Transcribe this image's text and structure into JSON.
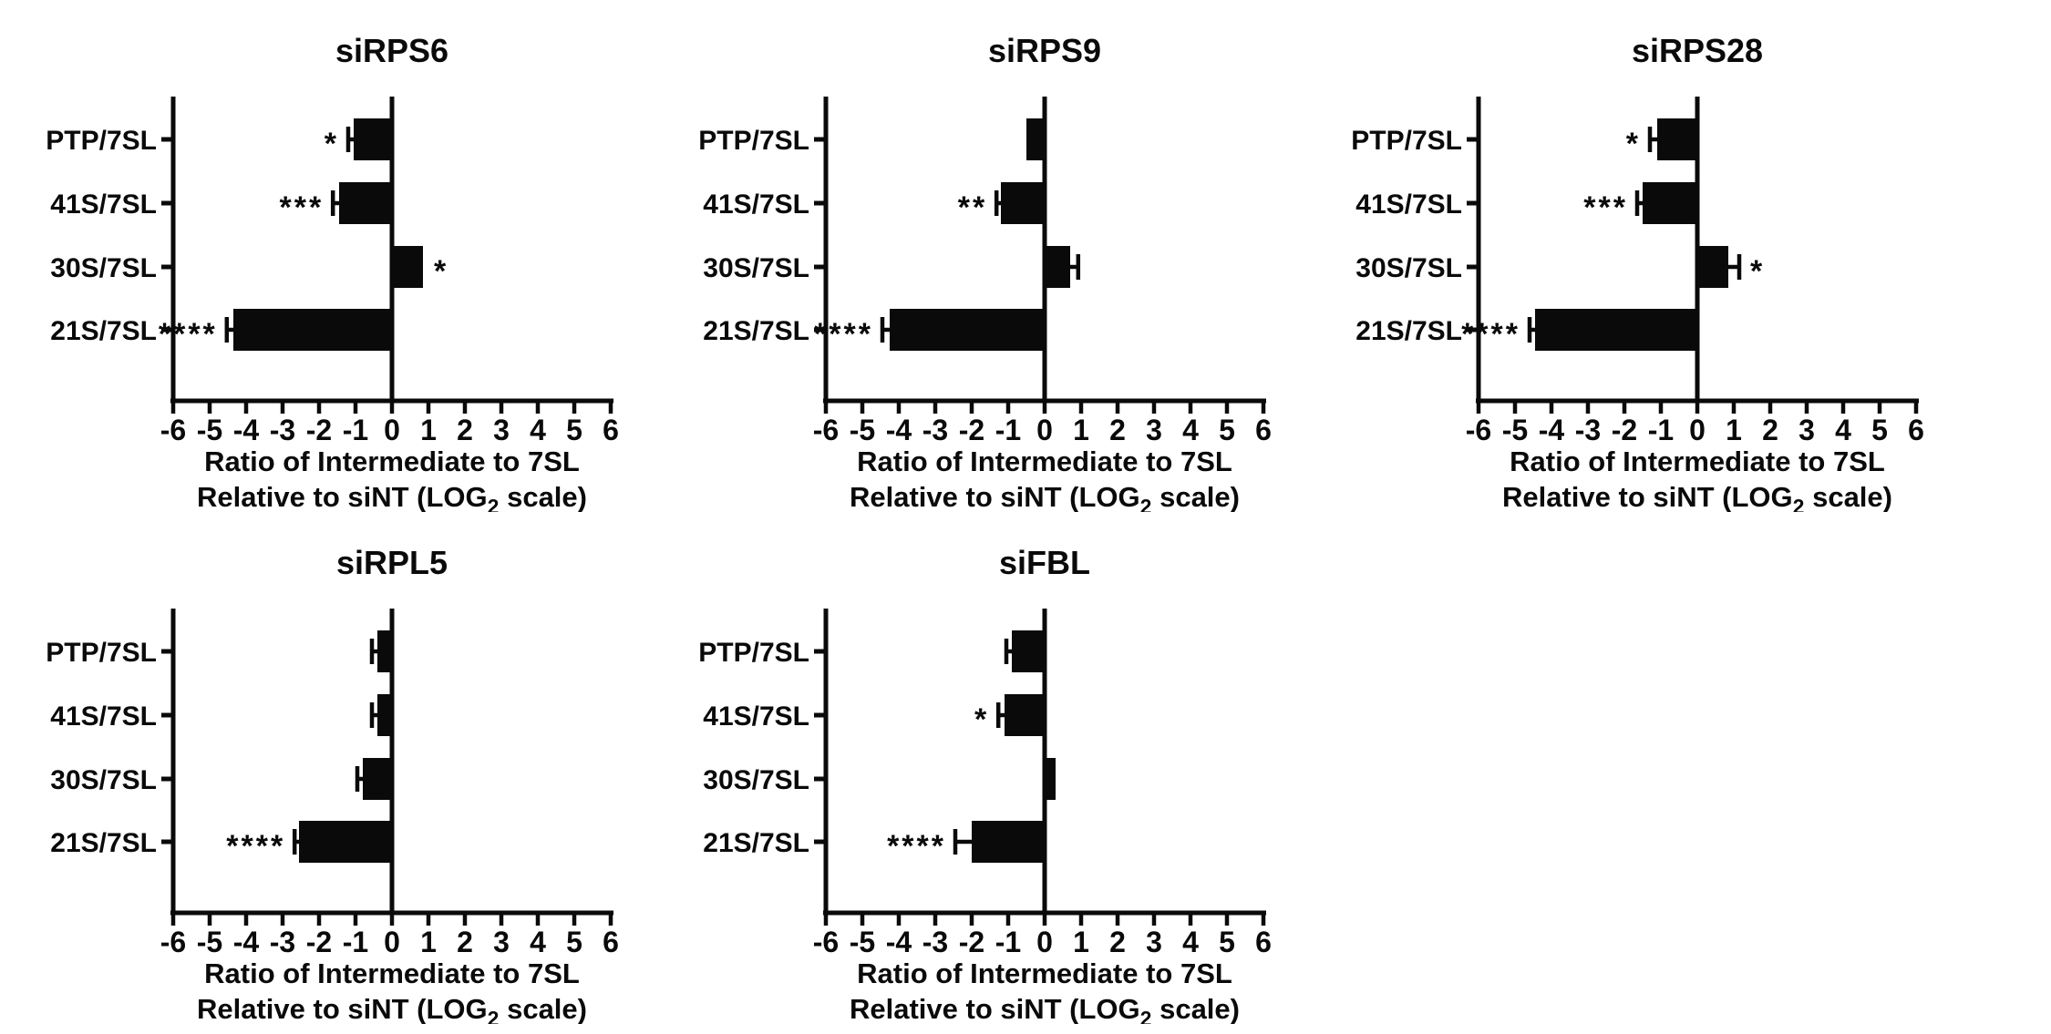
{
  "figure": {
    "background": "#ffffff",
    "ink_color": "#0a0a0a",
    "xlabel_line1": "Ratio of Intermediate to 7SL",
    "xlabel_line2_pre": "Relative to siNT (LOG",
    "xlabel_line2_sub": "2",
    "xlabel_line2_post": " scale)"
  },
  "chart_data": [
    {
      "type": "bar",
      "orientation": "horizontal",
      "title": "siRPS6",
      "categories": [
        "PTP/7SL",
        "41S/7SL",
        "30S/7SL",
        "21S/7SL"
      ],
      "values": [
        -1.05,
        -1.45,
        0.85,
        -4.35
      ],
      "errors": [
        0.15,
        0.17,
        0,
        0.18
      ],
      "significance": [
        "*",
        "***",
        "*",
        "****"
      ],
      "xlim": [
        -6,
        6
      ],
      "xticks": [
        -6,
        -5,
        -4,
        -3,
        -2,
        -1,
        0,
        1,
        2,
        3,
        4,
        5,
        6
      ],
      "xlabel": "Ratio of Intermediate to 7SL Relative to siNT (LOG2 scale)",
      "grid": false,
      "bar_color": "#0a0a0a"
    },
    {
      "type": "bar",
      "orientation": "horizontal",
      "title": "siRPS9",
      "categories": [
        "PTP/7SL",
        "41S/7SL",
        "30S/7SL",
        "21S/7SL"
      ],
      "values": [
        -0.5,
        -1.2,
        0.7,
        -4.25
      ],
      "errors": [
        0,
        0.12,
        0.22,
        0.2
      ],
      "significance": [
        "",
        "**",
        "",
        "****"
      ],
      "xlim": [
        -6,
        6
      ],
      "xticks": [
        -6,
        -5,
        -4,
        -3,
        -2,
        -1,
        0,
        1,
        2,
        3,
        4,
        5,
        6
      ],
      "xlabel": "Ratio of Intermediate to 7SL Relative to siNT (LOG2 scale)",
      "grid": false,
      "bar_color": "#0a0a0a"
    },
    {
      "type": "bar",
      "orientation": "horizontal",
      "title": "siRPS28",
      "categories": [
        "PTP/7SL",
        "41S/7SL",
        "30S/7SL",
        "21S/7SL"
      ],
      "values": [
        -1.1,
        -1.5,
        0.85,
        -4.45
      ],
      "errors": [
        0.2,
        0.15,
        0.3,
        0.15
      ],
      "significance": [
        "*",
        "***",
        "*",
        "****"
      ],
      "xlim": [
        -6,
        6
      ],
      "xticks": [
        -6,
        -5,
        -4,
        -3,
        -2,
        -1,
        0,
        1,
        2,
        3,
        4,
        5,
        6
      ],
      "xlabel": "Ratio of Intermediate to 7SL Relative to siNT (LOG2 scale)",
      "grid": false,
      "bar_color": "#0a0a0a"
    },
    {
      "type": "bar",
      "orientation": "horizontal",
      "title": "siRPL5",
      "categories": [
        "PTP/7SL",
        "41S/7SL",
        "30S/7SL",
        "21S/7SL"
      ],
      "values": [
        -0.4,
        -0.4,
        -0.8,
        -2.55
      ],
      "errors": [
        0.15,
        0.15,
        0.15,
        0.12
      ],
      "significance": [
        "",
        "",
        "",
        "****"
      ],
      "xlim": [
        -6,
        6
      ],
      "xticks": [
        -6,
        -5,
        -4,
        -3,
        -2,
        -1,
        0,
        1,
        2,
        3,
        4,
        5,
        6
      ],
      "xlabel": "Ratio of Intermediate to 7SL Relative to siNT (LOG2 scale)",
      "grid": false,
      "bar_color": "#0a0a0a"
    },
    {
      "type": "bar",
      "orientation": "horizontal",
      "title": "siFBL",
      "categories": [
        "PTP/7SL",
        "41S/7SL",
        "30S/7SL",
        "21S/7SL"
      ],
      "values": [
        -0.9,
        -1.1,
        0.3,
        -2.0
      ],
      "errors": [
        0.15,
        0.17,
        0,
        0.45
      ],
      "significance": [
        "",
        "*",
        "",
        "****"
      ],
      "xlim": [
        -6,
        6
      ],
      "xticks": [
        -6,
        -5,
        -4,
        -3,
        -2,
        -1,
        0,
        1,
        2,
        3,
        4,
        5,
        6
      ],
      "xlabel": "Ratio of Intermediate to 7SL Relative to siNT (LOG2 scale)",
      "grid": false,
      "bar_color": "#0a0a0a"
    }
  ]
}
